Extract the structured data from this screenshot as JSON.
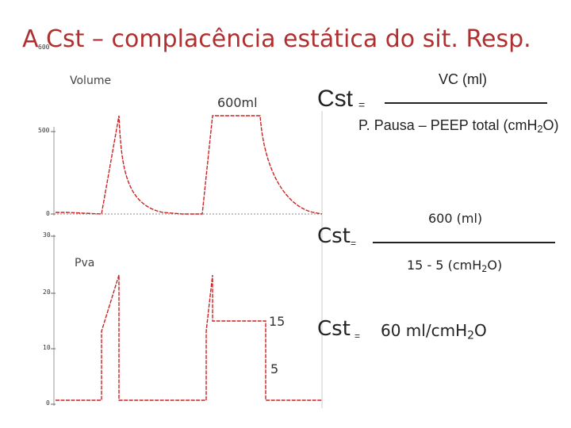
{
  "title": "A Cst – complacência estática do sit. Resp.",
  "title_tick": "600",
  "volume_panel": {
    "label": "Volume",
    "tick_top": "500",
    "tick_zero": "0",
    "annotation": "600ml"
  },
  "pressure_panel": {
    "label": "Pva",
    "ticks": [
      "30",
      "20",
      "10",
      "0"
    ],
    "peak_label": "15",
    "peep_label": "5"
  },
  "formula_1": {
    "lhs": "Cst",
    "eq": "=",
    "numerator": "VC (ml)",
    "denominator_prefix": "P. Pausa – PEEP total (cm",
    "denominator_h": "H",
    "denominator_sub": "2",
    "denominator_suffix": "O)"
  },
  "formula_2": {
    "lhs": "Cst",
    "eq": "=",
    "numerator": "600 (ml)",
    "denominator_prefix": "15 - 5 (cm",
    "denominator_h": "H",
    "denominator_sub": "2",
    "denominator_suffix": "O)"
  },
  "formula_3": {
    "lhs": "Cst",
    "eq": "=",
    "result_prefix": "60 ml/cm",
    "result_h": "H",
    "result_sub": "2",
    "result_suffix": "O"
  },
  "colors": {
    "waveform": "#cc2222",
    "title": "#b03030",
    "text": "#222222"
  }
}
